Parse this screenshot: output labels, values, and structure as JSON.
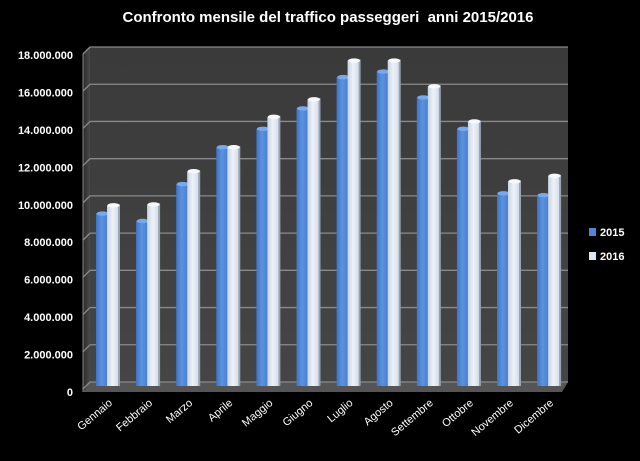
{
  "chart_data": {
    "type": "bar",
    "title": "Confronto mensile del traffico passeggeri  anni 2015/2016",
    "xlabel": "",
    "ylabel": "",
    "ylim": [
      0,
      18000000
    ],
    "grid": true,
    "legend_position": "right",
    "y_ticks": [
      "0",
      "2.000.000",
      "4.000.000",
      "6.000.000",
      "8.000.000",
      "10.000.000",
      "12.000.000",
      "14.000.000",
      "16.000.000",
      "18.000.000"
    ],
    "y_tick_values": [
      0,
      2000000,
      4000000,
      6000000,
      8000000,
      10000000,
      12000000,
      14000000,
      16000000,
      18000000
    ],
    "categories": [
      "Gennaio",
      "Febbraio",
      "Marzo",
      "Aprile",
      "Maggio",
      "Giugno",
      "Luglio",
      "Agosto",
      "Settembre",
      "Ottobre",
      "Novembre",
      "Dicembre"
    ],
    "series": [
      {
        "name": "2015",
        "color": "#4f86d6",
        "values": [
          9400000,
          9000000,
          11000000,
          13000000,
          14000000,
          15100000,
          16800000,
          17100000,
          15700000,
          14000000,
          10500000,
          10400000
        ]
      },
      {
        "name": "2016",
        "color": "#dde6f2",
        "values": [
          9850000,
          9900000,
          11700000,
          13000000,
          14650000,
          15600000,
          17700000,
          17700000,
          16300000,
          14400000,
          11150000,
          11450000
        ]
      }
    ]
  }
}
